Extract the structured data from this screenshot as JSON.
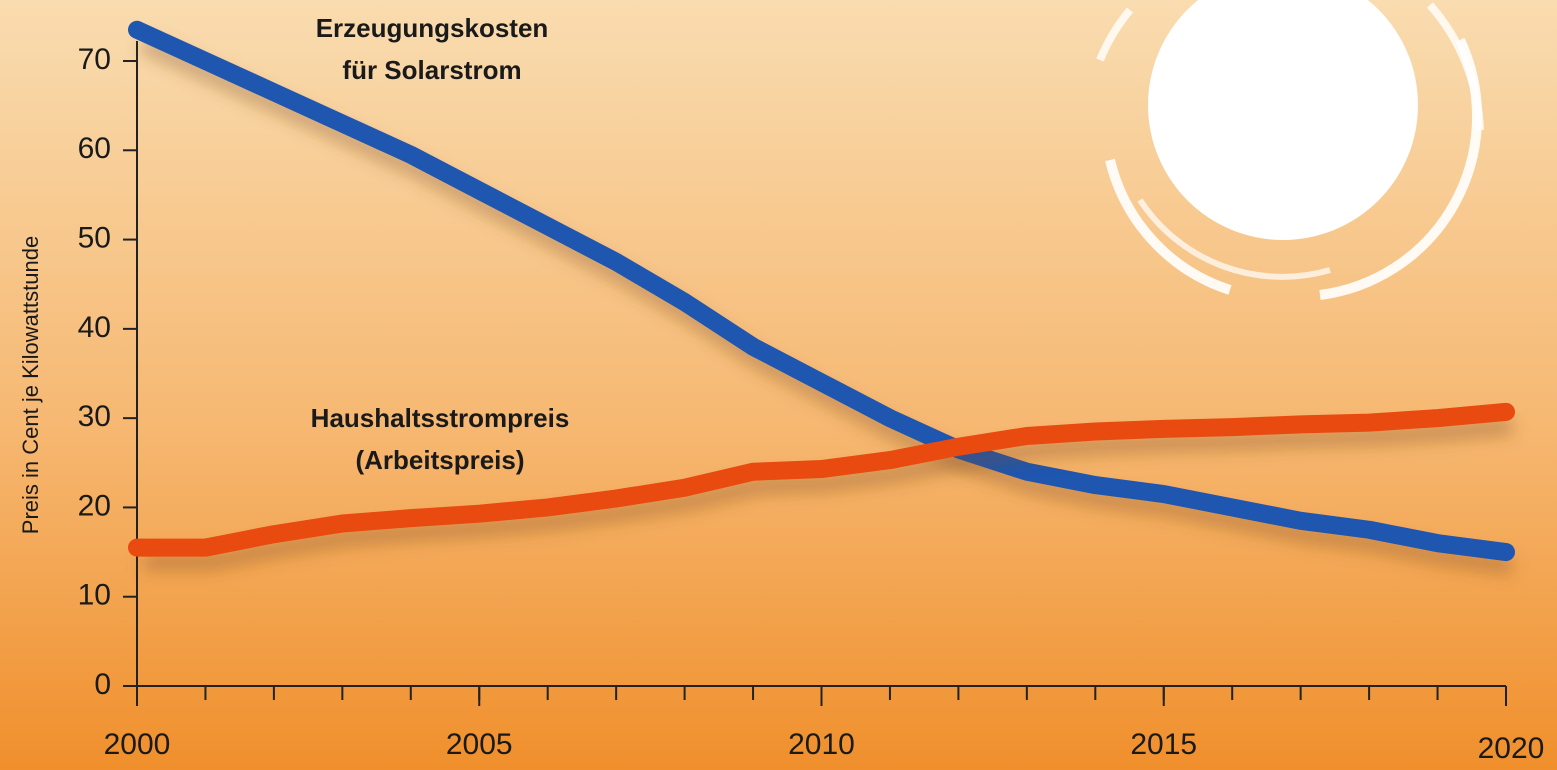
{
  "chart_data": {
    "type": "line",
    "y_label": "Preis in Cent je Kilowattstunde",
    "x": [
      2000,
      2001,
      2002,
      2003,
      2004,
      2005,
      2006,
      2007,
      2008,
      2009,
      2010,
      2011,
      2012,
      2013,
      2014,
      2015,
      2016,
      2017,
      2018,
      2019,
      2020
    ],
    "xlim": [
      2000,
      2020
    ],
    "xticks": [
      2000,
      2005,
      2010,
      2015,
      2020
    ],
    "ylim": [
      0,
      70
    ],
    "yticks": [
      0,
      10,
      20,
      30,
      40,
      50,
      60,
      70
    ],
    "series": [
      {
        "label": [
          "Erzeugungskosten",
          "für Solarstrom"
        ],
        "color": "#1e56b0",
        "values": [
          73.5,
          70,
          66.5,
          63,
          59.5,
          55.5,
          51.5,
          47.5,
          43,
          38,
          34,
          30,
          26.5,
          24,
          22.5,
          21.5,
          20,
          18.5,
          17.5,
          16,
          15
        ]
      },
      {
        "label": [
          "Haushaltsstrompreis",
          "(Arbeitspreis)"
        ],
        "color": "#e84a10",
        "values": [
          15.5,
          15.5,
          17,
          18.2,
          18.8,
          19.3,
          20,
          21,
          22.2,
          24,
          24.3,
          25.3,
          26.8,
          28,
          28.5,
          28.8,
          29,
          29.3,
          29.5,
          30,
          30.7
        ]
      }
    ]
  }
}
